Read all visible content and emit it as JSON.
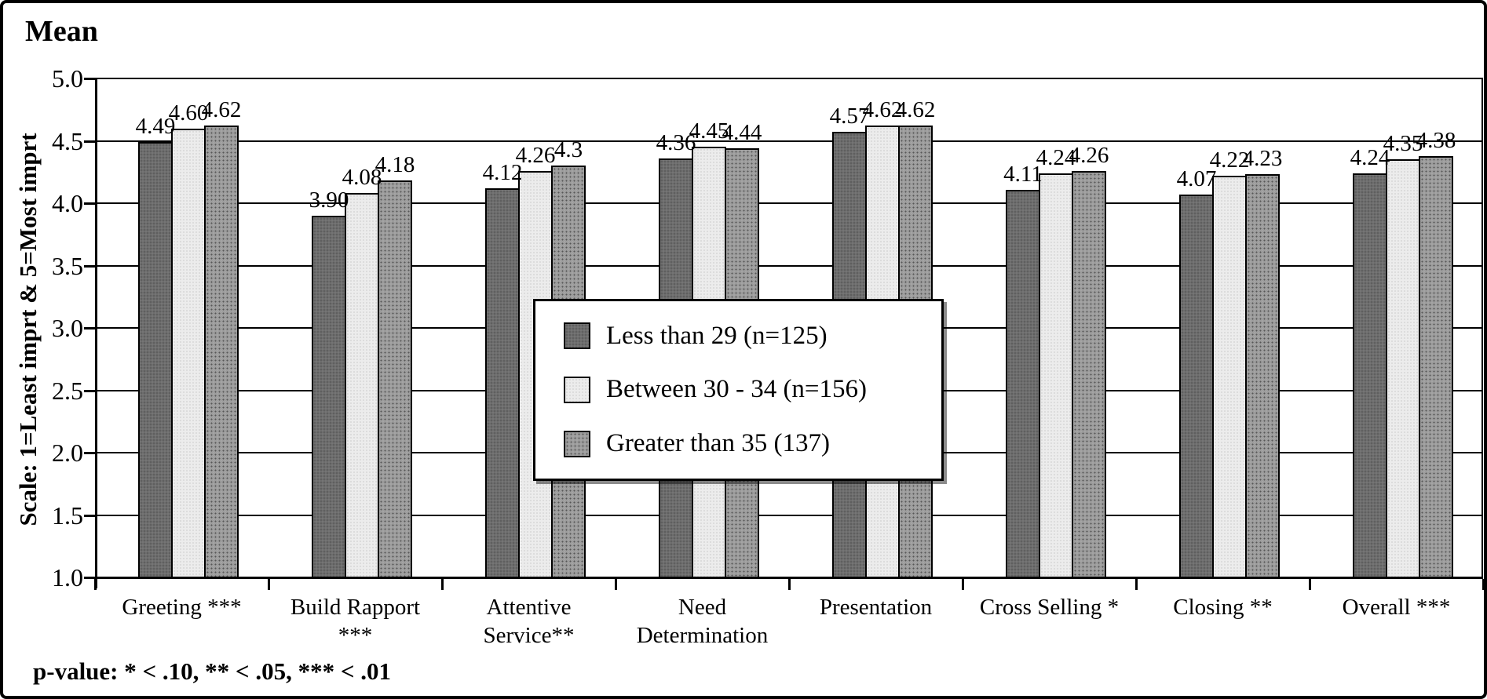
{
  "chart_data": {
    "type": "bar",
    "title": "Mean",
    "ylabel": "Scale: 1=Least imprt & 5=Most imprt",
    "xlabel": "",
    "ylim": [
      1.0,
      5.0
    ],
    "ytick_step": 0.5,
    "ytick_labels": [
      "5.0",
      "4.5",
      "4.0",
      "3.5",
      "3.0",
      "2.5",
      "2.0",
      "1.5",
      "1.0"
    ],
    "grid": "horizontal",
    "legend_position": "center-overlay",
    "categories": [
      "Greeting ***",
      "Build Rapport ***",
      "Attentive Service**",
      "Need Determination",
      "Presentation",
      "Cross Selling *",
      "Closing **",
      "Overall ***"
    ],
    "series": [
      {
        "name": "Less than 29 (n=125)",
        "values": [
          4.49,
          3.9,
          4.12,
          4.36,
          4.57,
          4.11,
          4.07,
          4.24
        ],
        "labels": [
          "4.49",
          "3.90",
          "4.12",
          "4.36",
          "4.57",
          "4.11",
          "4.07",
          "4.24"
        ],
        "color": "#6d6d6d"
      },
      {
        "name": "Between 30 - 34 (n=156)",
        "values": [
          4.6,
          4.08,
          4.26,
          4.45,
          4.62,
          4.24,
          4.22,
          4.35
        ],
        "labels": [
          "4.60",
          "4.08",
          "4.26",
          "4.45",
          "4.62",
          "4.24",
          "4.22",
          "4.35"
        ],
        "color": "#ececec"
      },
      {
        "name": "Greater than 35 (137)",
        "values": [
          4.62,
          4.18,
          4.3,
          4.44,
          4.62,
          4.26,
          4.23,
          4.38
        ],
        "labels": [
          "4.62",
          "4.18",
          "4.3",
          "4.44",
          "4.62",
          "4.26",
          "4.23",
          "4.38"
        ],
        "color": "#9c9c9c"
      }
    ],
    "footnote": "p-value: * < .10, ** < .05, *** < .01",
    "axis_color": "#000000",
    "background_color": "#ffffff"
  }
}
